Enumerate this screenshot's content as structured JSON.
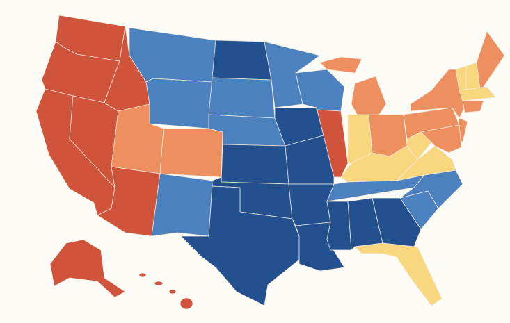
{
  "map": {
    "background": "#fcfbf6",
    "border": "#f3e9dc",
    "colors": [
      "#d0533b",
      "#ee8f5f",
      "#f9d77e",
      "#4a81be",
      "#23508f"
    ]
  }
}
